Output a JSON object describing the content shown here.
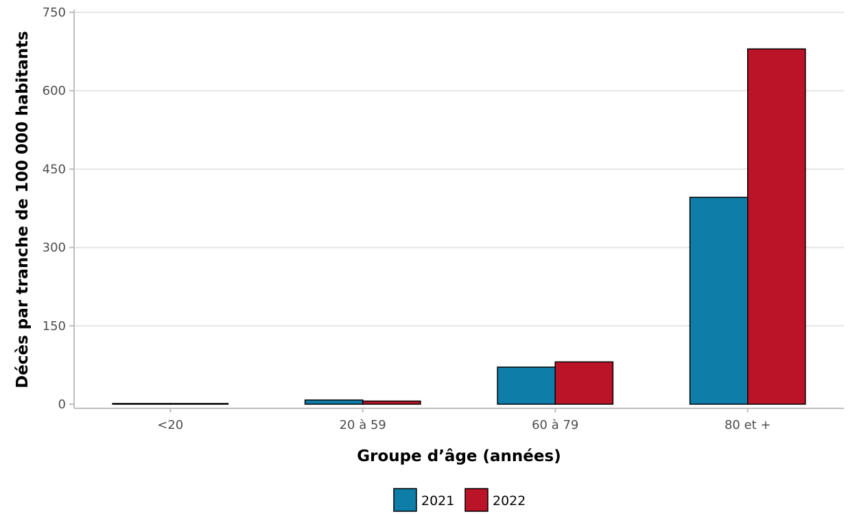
{
  "chart_data": {
    "type": "bar",
    "title": "",
    "xlabel": "Groupe d’âge (années)",
    "ylabel": "Décès par tranche de 100 000 habitants",
    "categories": [
      "<20",
      "20 à 59",
      "60 à 79",
      "80 et +"
    ],
    "series": [
      {
        "name": "2021",
        "color": "#0e7ea8",
        "values": [
          0.5,
          8,
          71,
          396
        ]
      },
      {
        "name": "2022",
        "color": "#bb1428",
        "values": [
          0.5,
          6,
          81,
          680
        ]
      }
    ],
    "ylim": [
      0,
      750
    ],
    "yticks": [
      0,
      150,
      300,
      450,
      600,
      750
    ],
    "grid": true,
    "legend_position": "bottom"
  }
}
